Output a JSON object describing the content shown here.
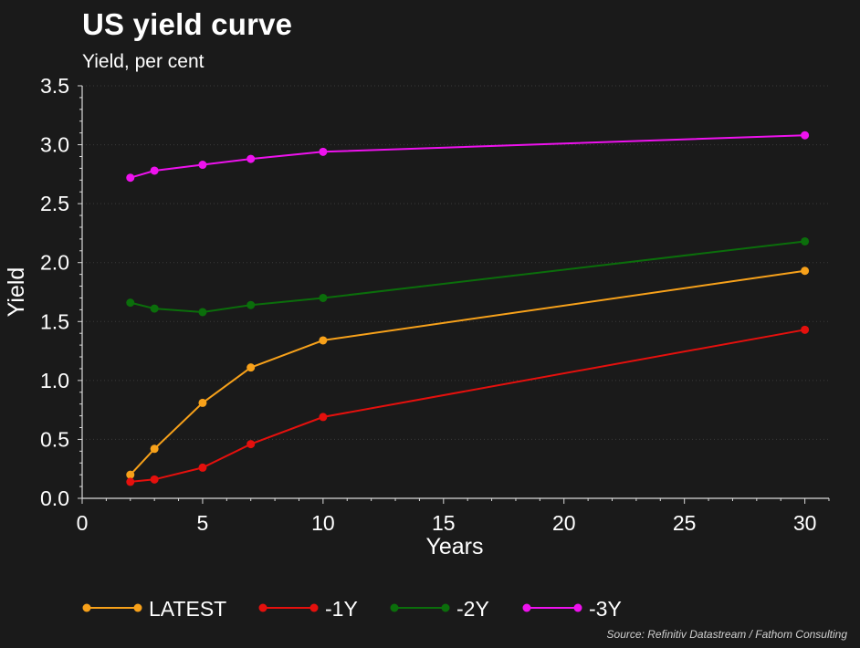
{
  "header": {
    "title": "US yield curve",
    "subtitle": "Yield, per cent"
  },
  "footer": {
    "source": "Source: Refinitiv Datastream / Fathom Consulting"
  },
  "chart_data": {
    "type": "line",
    "title": "US yield curve",
    "subtitle": "Yield, per cent",
    "xlabel": "Years",
    "ylabel": "Yield",
    "xlim": [
      0,
      31
    ],
    "ylim": [
      0,
      3.5
    ],
    "x_ticks": [
      0,
      5,
      10,
      15,
      20,
      25,
      30
    ],
    "y_ticks": [
      0.0,
      0.5,
      1.0,
      1.5,
      2.0,
      2.5,
      3.0,
      3.5
    ],
    "grid": "horizontal-dotted",
    "legend_position": "bottom",
    "series": [
      {
        "name": "LATEST",
        "color": "#f7a11a",
        "x": [
          2,
          3,
          5,
          7,
          10,
          30
        ],
        "y": [
          0.2,
          0.42,
          0.81,
          1.11,
          1.34,
          1.93
        ]
      },
      {
        "name": "-1Y",
        "color": "#e5100d",
        "x": [
          2,
          3,
          5,
          7,
          10,
          30
        ],
        "y": [
          0.14,
          0.16,
          0.26,
          0.46,
          0.69,
          1.43
        ]
      },
      {
        "name": "-2Y",
        "color": "#0b6e0b",
        "x": [
          2,
          3,
          5,
          7,
          10,
          30
        ],
        "y": [
          1.66,
          1.61,
          1.58,
          1.64,
          1.7,
          2.18
        ]
      },
      {
        "name": "-3Y",
        "color": "#ee12ee",
        "x": [
          2,
          3,
          5,
          7,
          10,
          30
        ],
        "y": [
          2.72,
          2.78,
          2.83,
          2.88,
          2.94,
          3.08
        ]
      }
    ]
  }
}
